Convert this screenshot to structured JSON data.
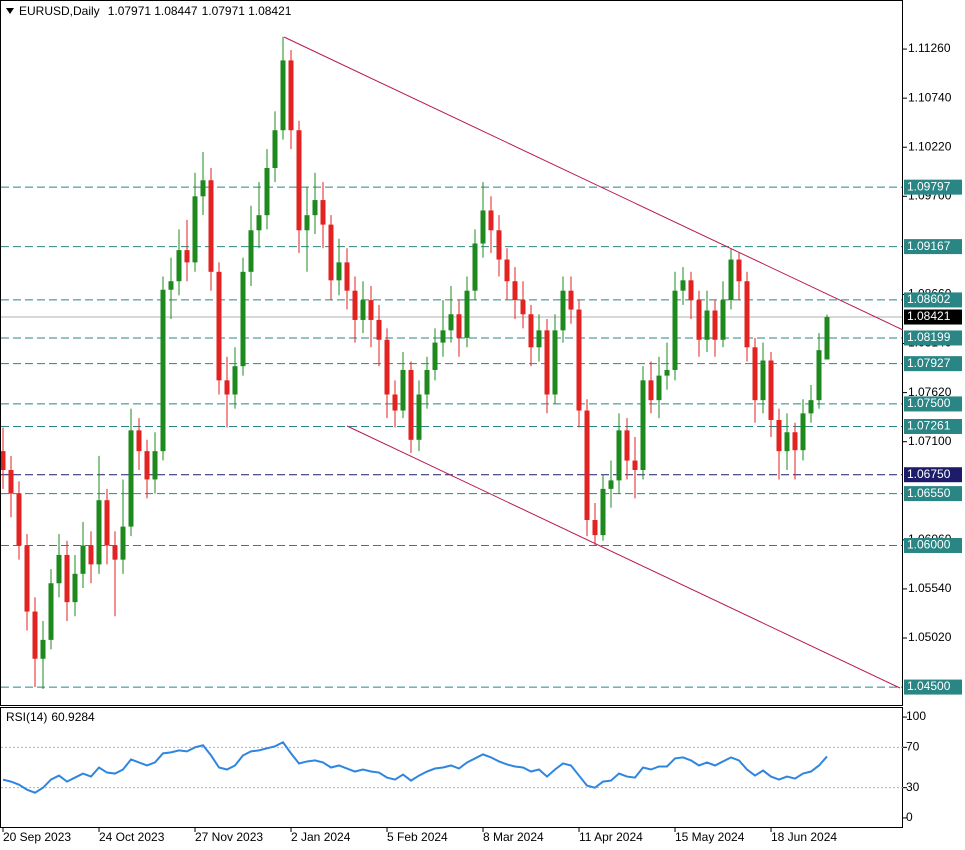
{
  "chart_data": {
    "type": "candlestick",
    "title": "EURUSD,Daily",
    "categories": [
      "20 Sep 2023",
      null,
      null,
      null,
      null,
      null,
      null,
      null,
      null,
      null,
      null,
      null,
      "24 Oct 2023",
      null,
      null,
      null,
      null,
      null,
      null,
      null,
      null,
      null,
      null,
      null,
      "27 Nov 2023",
      null,
      null,
      null,
      null,
      null,
      null,
      null,
      null,
      null,
      null,
      null,
      "2 Jan 2024",
      null,
      null,
      null,
      null,
      null,
      null,
      null,
      null,
      null,
      null,
      null,
      "5 Feb 2024",
      null,
      null,
      null,
      null,
      null,
      null,
      null,
      null,
      null,
      null,
      null,
      "8 Mar 2024",
      null,
      null,
      null,
      null,
      null,
      null,
      null,
      null,
      null,
      null,
      null,
      "11 Apr 2024",
      null,
      null,
      null,
      null,
      null,
      null,
      null,
      null,
      null,
      null,
      null,
      "15 May 2024",
      null,
      null,
      null,
      null,
      null,
      null,
      null,
      null,
      null,
      null,
      null,
      "18 Jun 2024",
      null,
      null,
      null,
      null,
      null,
      null,
      null
    ],
    "open": [
      1.07,
      1.068,
      1.0655,
      1.06,
      1.053,
      1.048,
      1.05,
      1.056,
      1.059,
      1.054,
      1.057,
      1.06,
      1.058,
      1.0648,
      1.06,
      1.0585,
      1.062,
      1.0722,
      1.07,
      1.067,
      1.07,
      1.0871,
      1.088,
      1.0913,
      1.09,
      1.097,
      1.0987,
      1.089,
      1.0775,
      1.076,
      1.079,
      1.089,
      1.0934,
      1.095,
      1.1,
      1.104,
      1.1114,
      1.104,
      1.0934,
      1.095,
      1.0966,
      1.094,
      1.0881,
      1.09,
      1.087,
      1.0839,
      1.086,
      1.0839,
      1.0818,
      1.076,
      1.0743,
      1.0786,
      1.0712,
      1.076,
      1.0786,
      1.0815,
      1.0828,
      1.0845,
      1.082,
      1.087,
      1.092,
      1.0955,
      1.0934,
      1.0903,
      1.088,
      1.086,
      1.0845,
      1.081,
      1.0828,
      1.076,
      1.0828,
      1.087,
      1.085,
      1.0743,
      1.0627,
      1.0611,
      1.066,
      1.0669,
      1.0722,
      1.069,
      1.068,
      1.0775,
      1.0754,
      1.078,
      1.0786,
      1.087,
      1.0881,
      1.086,
      1.0818,
      1.0849,
      1.0818,
      1.086,
      1.0903,
      1.088,
      1.081,
      1.0754,
      1.0796,
      1.0733,
      1.07,
      1.072,
      1.0701,
      1.074,
      1.0754,
      1.07971
    ],
    "high": [
      1.0725,
      1.0695,
      1.0668,
      1.0612,
      1.0545,
      1.052,
      1.0575,
      1.0612,
      1.0605,
      1.059,
      1.0625,
      1.0615,
      1.0695,
      1.066,
      1.0615,
      1.067,
      1.0745,
      1.0735,
      1.0712,
      1.072,
      1.0885,
      1.0905,
      1.0935,
      1.0945,
      1.0995,
      1.1017,
      1.1,
      1.09,
      1.08,
      1.081,
      1.0905,
      1.096,
      1.0985,
      1.102,
      1.106,
      1.1139,
      1.1125,
      1.105,
      1.098,
      1.0995,
      1.0985,
      1.095,
      1.0925,
      1.0915,
      1.0885,
      1.088,
      1.0875,
      1.0855,
      1.083,
      1.0775,
      1.0805,
      1.0795,
      1.0775,
      1.08,
      1.083,
      1.086,
      1.0875,
      1.086,
      1.0885,
      1.0935,
      1.0985,
      1.097,
      1.095,
      1.0915,
      1.0895,
      1.088,
      1.0855,
      1.0845,
      1.084,
      1.0845,
      1.0885,
      1.0885,
      1.086,
      1.0755,
      1.0645,
      1.0675,
      1.069,
      1.074,
      1.0735,
      1.0715,
      1.079,
      1.0795,
      1.08,
      1.0815,
      1.089,
      1.0895,
      1.089,
      1.087,
      1.087,
      1.086,
      1.088,
      1.0915,
      1.091,
      1.089,
      1.082,
      1.0815,
      1.0805,
      1.0745,
      1.074,
      1.073,
      1.0755,
      1.077,
      1.0825,
      1.08447
    ],
    "low": [
      1.066,
      1.063,
      1.0585,
      1.051,
      1.045,
      1.0448,
      1.049,
      1.0545,
      1.052,
      1.0525,
      1.0555,
      1.056,
      1.057,
      1.058,
      1.0525,
      1.057,
      1.061,
      1.068,
      1.065,
      1.0655,
      1.069,
      1.084,
      1.0865,
      1.088,
      1.089,
      1.095,
      1.087,
      1.076,
      1.0725,
      1.0745,
      1.078,
      1.0875,
      1.0915,
      1.0935,
      1.0985,
      1.103,
      1.102,
      1.091,
      1.089,
      1.093,
      1.0915,
      1.086,
      1.0865,
      1.085,
      1.0815,
      1.0825,
      1.081,
      1.079,
      1.0735,
      1.0725,
      1.0735,
      1.0698,
      1.07,
      1.0745,
      1.0775,
      1.08,
      1.0815,
      1.08,
      1.081,
      1.086,
      1.0905,
      1.091,
      1.0885,
      1.086,
      1.084,
      1.083,
      1.079,
      1.0795,
      1.074,
      1.075,
      1.0815,
      1.0835,
      1.0725,
      1.061,
      1.06,
      1.0605,
      1.064,
      1.0655,
      1.067,
      1.065,
      1.067,
      1.074,
      1.0735,
      1.0765,
      1.0775,
      1.0855,
      1.084,
      1.08,
      1.0805,
      1.08,
      1.081,
      1.085,
      1.086,
      1.0795,
      1.073,
      1.074,
      1.0715,
      1.067,
      1.068,
      1.067,
      1.069,
      1.073,
      1.0745,
      1.07971
    ],
    "close": [
      1.068,
      1.0655,
      1.06,
      1.053,
      1.048,
      1.05,
      1.056,
      1.059,
      1.054,
      1.057,
      1.06,
      1.058,
      1.0648,
      1.06,
      1.0585,
      1.062,
      1.0722,
      1.07,
      1.067,
      1.07,
      1.0871,
      1.088,
      1.0913,
      1.09,
      1.097,
      1.0987,
      1.089,
      1.0775,
      1.076,
      1.079,
      1.089,
      1.0934,
      1.095,
      1.1,
      1.104,
      1.1114,
      1.104,
      1.0934,
      1.095,
      1.0966,
      1.094,
      1.0881,
      1.09,
      1.087,
      1.0839,
      1.086,
      1.0839,
      1.0818,
      1.076,
      1.0743,
      1.0786,
      1.0712,
      1.076,
      1.0786,
      1.0815,
      1.0828,
      1.0845,
      1.082,
      1.087,
      1.092,
      1.0955,
      1.0934,
      1.0903,
      1.088,
      1.086,
      1.0845,
      1.081,
      1.0828,
      1.076,
      1.0828,
      1.087,
      1.085,
      1.0743,
      1.0627,
      1.0611,
      1.066,
      1.0669,
      1.0722,
      1.069,
      1.068,
      1.0775,
      1.0754,
      1.078,
      1.0786,
      1.087,
      1.0881,
      1.086,
      1.0818,
      1.0849,
      1.0818,
      1.086,
      1.0903,
      1.088,
      1.081,
      1.0754,
      1.0796,
      1.0733,
      1.07,
      1.072,
      1.0701,
      1.074,
      1.0754,
      1.0807,
      1.08421
    ],
    "up_color": "#1e8a1e",
    "down_color": "#e32222",
    "ylim": [
      1.0431,
      1.1178
    ],
    "yticks": [
      {
        "value": 1.1126,
        "label": "1.11260"
      },
      {
        "value": 1.1074,
        "label": "1.10740"
      },
      {
        "value": 1.1022,
        "label": "1.10220"
      },
      {
        "value": 1.097,
        "label": "1.09700"
      },
      {
        "value": 1.0866,
        "label": "1.08660"
      },
      {
        "value": 1.0814,
        "label": "1.08140"
      },
      {
        "value": 1.0762,
        "label": "1.07620"
      },
      {
        "value": 1.071,
        "label": "1.07100"
      },
      {
        "value": 1.0606,
        "label": "1.06060"
      },
      {
        "value": 1.0554,
        "label": "1.05540"
      },
      {
        "value": 1.0502,
        "label": "1.05020"
      }
    ],
    "levels": [
      {
        "value": 1.09797,
        "color": "#2a8585"
      },
      {
        "value": 1.09167,
        "color": "#2a8585"
      },
      {
        "value": 1.08602,
        "color": "#2a8585"
      },
      {
        "value": 1.08199,
        "color": "#2a8585"
      },
      {
        "value": 1.07927,
        "color": "#2a8585"
      },
      {
        "value": 1.075,
        "label": "1.07500",
        "color": "#2a8585"
      },
      {
        "value": 1.07261,
        "color": "#2a8585"
      },
      {
        "value": 1.0675,
        "label": "1.06750",
        "color": "#1c1c6b"
      },
      {
        "value": 1.0655,
        "label": "1.06550",
        "color": "#2a8585"
      },
      {
        "value": 1.06,
        "label": "1.06000",
        "color": "#2a8585"
      },
      {
        "value": 1.045,
        "label": "1.04500",
        "color": "#2a8585"
      }
    ],
    "rsi": {
      "name": "RSI(14)",
      "color": "#2f86e0",
      "values": [
        38,
        36,
        33,
        28,
        25,
        30,
        38,
        42,
        36,
        40,
        44,
        41,
        50,
        45,
        44,
        48,
        58,
        55,
        52,
        55,
        64,
        65,
        67,
        66,
        70,
        72,
        62,
        50,
        48,
        52,
        62,
        66,
        67,
        69,
        71,
        75,
        64,
        54,
        56,
        57,
        55,
        50,
        52,
        49,
        46,
        48,
        46,
        45,
        40,
        38,
        43,
        37,
        42,
        46,
        49,
        50,
        52,
        49,
        55,
        59,
        63,
        60,
        56,
        53,
        51,
        50,
        46,
        48,
        41,
        48,
        54,
        52,
        42,
        32,
        30,
        36,
        37,
        44,
        41,
        40,
        50,
        48,
        51,
        51,
        59,
        60,
        57,
        52,
        55,
        52,
        56,
        60,
        57,
        48,
        42,
        47,
        41,
        38,
        41,
        39,
        44,
        46,
        52,
        60.9284
      ],
      "ylim": [
        -10,
        109
      ],
      "yticks": [
        100,
        70,
        30,
        0
      ],
      "levels": [
        70,
        30
      ]
    }
  }
}
